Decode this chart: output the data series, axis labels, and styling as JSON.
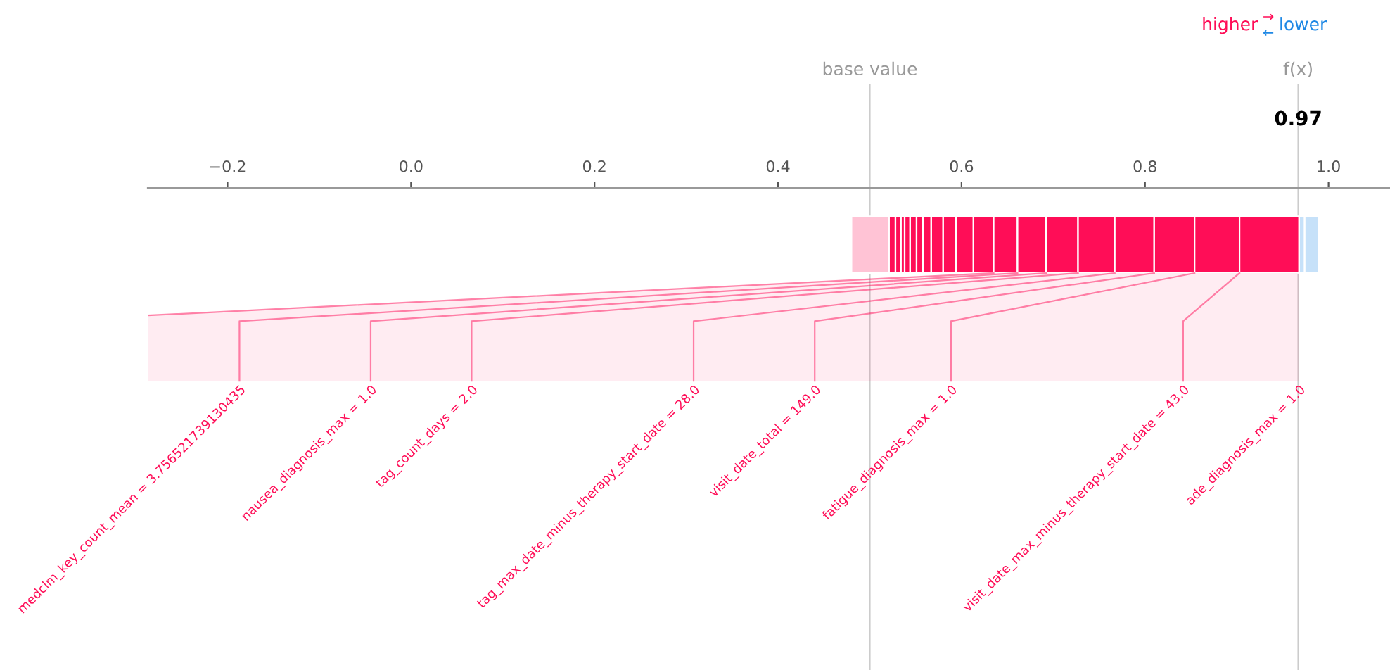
{
  "chart_data": {
    "type": "bar",
    "orientation": "horizontal",
    "categories": [
      null
    ],
    "xlim": [
      -0.287,
      1.067
    ],
    "xticks": [
      {
        "value": -0.2,
        "label": "−0.2"
      },
      {
        "value": 0,
        "label": "0.0"
      },
      0.2,
      0.4,
      0.6,
      0.8,
      {
        "value": 1,
        "label": "1.0"
      }
    ],
    "tick_labels": "x",
    "series": [
      {
        "color": "#ffc3d5",
        "base": [
          0.48
        ],
        "values": [
          0.041
        ]
      },
      {
        "color": "#ff0d57",
        "base": [
          0.521
        ],
        "values": [
          0.007
        ]
      },
      {
        "color": "#ff0d57",
        "base": [
          0.528
        ],
        "values": [
          0.006
        ]
      },
      {
        "color": "#ff0d57",
        "base": [
          0.534
        ],
        "values": [
          0.004
        ]
      },
      {
        "color": "#ff0d57",
        "base": [
          0.538
        ],
        "values": [
          0.006
        ]
      },
      {
        "color": "#ff0d57",
        "base": [
          0.544
        ],
        "values": [
          0.007
        ]
      },
      {
        "color": "#ff0d57",
        "base": [
          0.551
        ],
        "values": [
          0.007
        ]
      },
      {
        "color": "#ff0d57",
        "base": [
          0.558
        ],
        "values": [
          0.009
        ]
      },
      {
        "color": "#ff0d57",
        "base": [
          0.567
        ],
        "values": [
          0.013
        ]
      },
      {
        "color": "#ff0d57",
        "base": [
          0.58
        ],
        "values": [
          0.014
        ]
      },
      {
        "color": "#ff0d57",
        "base": [
          0.594
        ],
        "values": [
          0.019
        ]
      },
      {
        "color": "#ff0d57",
        "base": [
          0.613
        ],
        "values": [
          0.022
        ]
      },
      {
        "color": "#ff0d57",
        "base": [
          0.635
        ],
        "values": [
          0.026
        ]
      },
      {
        "color": "#ff0d57",
        "base": [
          0.661
        ],
        "values": [
          0.031
        ]
      },
      {
        "color": "#ff0d57",
        "base": [
          0.692
        ],
        "values": [
          0.035
        ]
      },
      {
        "color": "#ff0d57",
        "base": [
          0.727
        ],
        "values": [
          0.04
        ]
      },
      {
        "color": "#ff0d57",
        "base": [
          0.767
        ],
        "values": [
          0.043
        ]
      },
      {
        "color": "#ff0d57",
        "base": [
          0.81
        ],
        "values": [
          0.044
        ]
      },
      {
        "color": "#ff0d57",
        "base": [
          0.854
        ],
        "values": [
          0.049
        ]
      },
      {
        "color": "#ff0d57",
        "base": [
          0.903
        ],
        "values": [
          0.065
        ]
      },
      {
        "color": "#c6e1f9",
        "base": [
          0.974
        ],
        "values": [
          -0.006
        ]
      },
      {
        "color": "#c6e1f9",
        "base": [
          0.989
        ],
        "values": [
          -0.015
        ]
      }
    ],
    "ref_lines": [
      {
        "axis": "x",
        "value": 0.5,
        "label": "base value",
        "color": "#cccccc"
      },
      {
        "axis": "x",
        "value": 0.967,
        "label": "f(x)",
        "color": "#cccccc"
      }
    ],
    "annotations": [
      "higher",
      "→",
      "←",
      "lower",
      {
        "text": "0.97",
        "x": 0.967
      },
      "medclm_key_count_mean = 3.756521739130435",
      "nausea_diagnosis_max = 1.0",
      "tag_count_days = 2.0",
      "tag_max_date_minus_therapy_start_date = 28.0",
      "visit_date_total = 149.0",
      "fatigue_diagnosis_max = 1.0",
      "visit_date_max_minus_therapy_start_date = 43.0",
      "ade_diagnosis_max = 1.0"
    ]
  }
}
